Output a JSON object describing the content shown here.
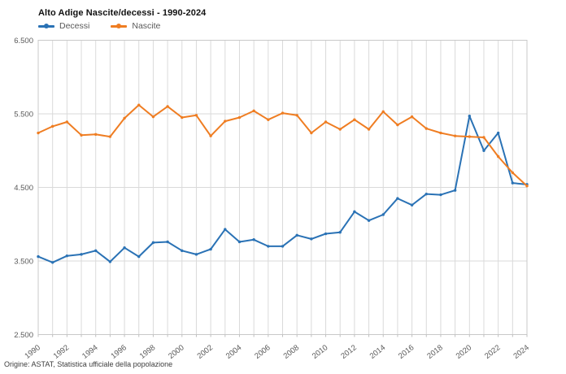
{
  "title": "Alto Adige Nascite/decessi - 1990-2024",
  "footer": "Origine: ASTAT, Statistica ufficiale della popolazione",
  "legend": {
    "items": [
      {
        "label": "Decessi",
        "color": "#2A72B5"
      },
      {
        "label": "Nascite",
        "color": "#EF7D22"
      }
    ]
  },
  "colors": {
    "grid": "#DADADA",
    "plot_border": "#C9C9C9",
    "tick": "#BFBFBF",
    "axis_text": "#595959"
  },
  "chart_data": {
    "type": "line",
    "title": "Alto Adige Nascite/decessi - 1990-2024",
    "x": [
      1990,
      1991,
      1992,
      1993,
      1994,
      1995,
      1996,
      1997,
      1998,
      1999,
      2000,
      2001,
      2002,
      2003,
      2004,
      2005,
      2006,
      2007,
      2008,
      2009,
      2010,
      2011,
      2012,
      2013,
      2014,
      2015,
      2016,
      2017,
      2018,
      2019,
      2020,
      2021,
      2022,
      2023,
      2024
    ],
    "series": [
      {
        "name": "Decessi",
        "color": "#2A72B5",
        "values": [
          3560,
          3480,
          3570,
          3590,
          3640,
          3490,
          3680,
          3560,
          3750,
          3760,
          3640,
          3590,
          3660,
          3930,
          3760,
          3790,
          3700,
          3700,
          3850,
          3800,
          3870,
          3890,
          4170,
          4050,
          4130,
          4350,
          4260,
          4410,
          4400,
          4460,
          5470,
          5000,
          5240,
          4560,
          4540
        ]
      },
      {
        "name": "Nascite",
        "color": "#EF7D22",
        "values": [
          5240,
          5330,
          5390,
          5210,
          5220,
          5190,
          5440,
          5620,
          5460,
          5600,
          5450,
          5480,
          5200,
          5400,
          5450,
          5540,
          5420,
          5510,
          5480,
          5240,
          5390,
          5290,
          5420,
          5290,
          5530,
          5350,
          5460,
          5300,
          5240,
          5200,
          5190,
          5180,
          4920,
          4700,
          4520
        ]
      }
    ],
    "ylim": [
      2500,
      6500
    ],
    "yticks": [
      2500,
      3500,
      4500,
      5500,
      6500
    ],
    "ytick_labels": [
      "2.500",
      "3.500",
      "4.500",
      "5.500",
      "6.500"
    ],
    "xtick_years": [
      1990,
      1992,
      1994,
      1996,
      1998,
      2000,
      2002,
      2004,
      2006,
      2008,
      2010,
      2012,
      2014,
      2016,
      2018,
      2020,
      2022,
      2024
    ],
    "grid": true,
    "legend_position": "top-left",
    "xlabel": "",
    "ylabel": ""
  }
}
